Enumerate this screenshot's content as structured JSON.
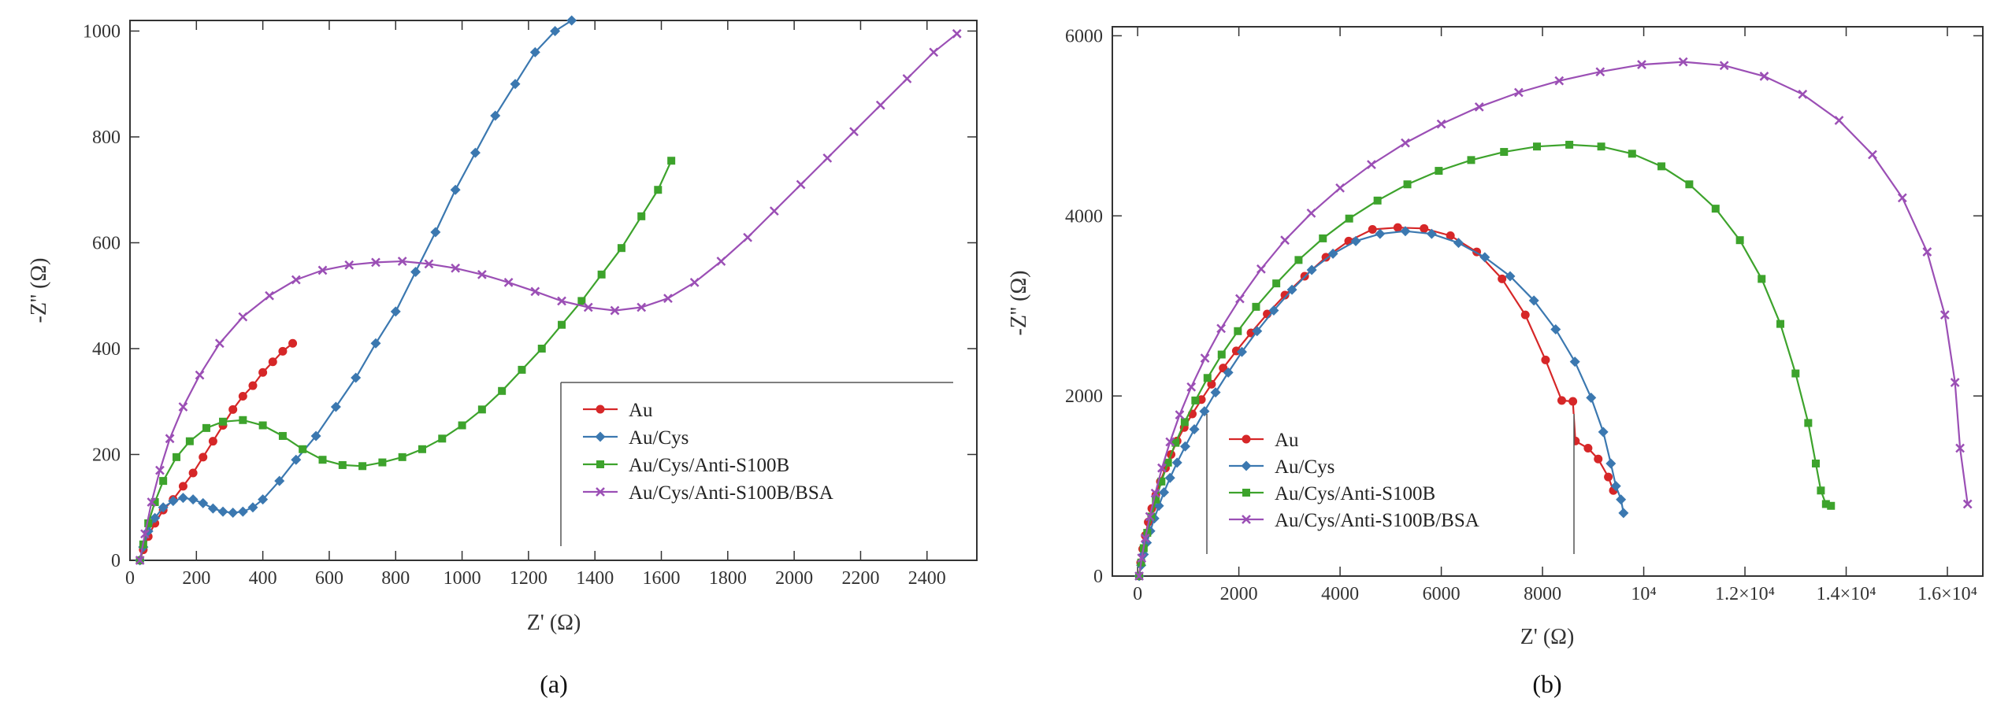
{
  "chart_data": [
    {
      "type": "line",
      "panel_label": "(a)",
      "xlabel": "Z' (Ω)",
      "ylabel": "-Z'' (Ω)",
      "xlim": [
        0,
        2550
      ],
      "ylim": [
        0,
        1020
      ],
      "xticks": [
        0,
        200,
        400,
        600,
        800,
        1000,
        1200,
        1400,
        1600,
        1800,
        2000,
        2200,
        2400
      ],
      "xtick_labels": [
        "0",
        "200",
        "400",
        "600",
        "800",
        "1000",
        "1200",
        "1400",
        "1600",
        "1800",
        "2000",
        "2200",
        "2400"
      ],
      "yticks": [
        0,
        200,
        400,
        600,
        800,
        1000
      ],
      "ytick_labels": [
        "0",
        "200",
        "400",
        "600",
        "800",
        "1000"
      ],
      "legend_position": "bottom-right",
      "series": [
        {
          "name": "Au",
          "color": "#d62728",
          "marker": "circle",
          "x": [
            30,
            40,
            55,
            75,
            100,
            130,
            160,
            190,
            220,
            250,
            280,
            310,
            340,
            370,
            400,
            430,
            460,
            490
          ],
          "y": [
            0,
            20,
            45,
            70,
            95,
            115,
            140,
            165,
            195,
            225,
            255,
            285,
            310,
            330,
            355,
            375,
            395,
            410
          ]
        },
        {
          "name": "Au/Cys",
          "color": "#3b78b0",
          "marker": "diamond",
          "x": [
            30,
            40,
            55,
            75,
            100,
            130,
            160,
            190,
            220,
            250,
            280,
            310,
            340,
            370,
            400,
            450,
            500,
            560,
            620,
            680,
            740,
            800,
            860,
            920,
            980,
            1040,
            1100,
            1160,
            1220,
            1280,
            1330
          ],
          "y": [
            0,
            25,
            55,
            80,
            100,
            112,
            118,
            115,
            108,
            98,
            92,
            90,
            92,
            100,
            115,
            150,
            190,
            235,
            290,
            345,
            410,
            470,
            545,
            620,
            700,
            770,
            840,
            900,
            960,
            1000,
            1020
          ]
        },
        {
          "name": "Au/Cys/Anti-S100B",
          "color": "#3da32c",
          "marker": "square",
          "x": [
            30,
            40,
            55,
            75,
            100,
            140,
            180,
            230,
            280,
            340,
            400,
            460,
            520,
            580,
            640,
            700,
            760,
            820,
            880,
            940,
            1000,
            1060,
            1120,
            1180,
            1240,
            1300,
            1360,
            1420,
            1480,
            1540,
            1590,
            1630
          ],
          "y": [
            0,
            30,
            70,
            110,
            150,
            195,
            225,
            250,
            262,
            265,
            255,
            235,
            210,
            190,
            180,
            178,
            185,
            195,
            210,
            230,
            255,
            285,
            320,
            360,
            400,
            445,
            490,
            540,
            590,
            650,
            700,
            755
          ]
        },
        {
          "name": "Au/Cys/Anti-S100B/BSA",
          "color": "#9b4fb5",
          "marker": "x",
          "x": [
            30,
            45,
            65,
            90,
            120,
            160,
            210,
            270,
            340,
            420,
            500,
            580,
            660,
            740,
            820,
            900,
            980,
            1060,
            1140,
            1220,
            1300,
            1380,
            1460,
            1540,
            1620,
            1700,
            1780,
            1860,
            1940,
            2020,
            2100,
            2180,
            2260,
            2340,
            2420,
            2490
          ],
          "y": [
            0,
            50,
            110,
            170,
            230,
            290,
            350,
            410,
            460,
            500,
            530,
            548,
            558,
            563,
            565,
            560,
            552,
            540,
            525,
            508,
            490,
            478,
            472,
            478,
            495,
            525,
            565,
            610,
            660,
            710,
            760,
            810,
            860,
            910,
            960,
            995
          ]
        }
      ]
    },
    {
      "type": "line",
      "panel_label": "(b)",
      "xlabel": "Z' (Ω)",
      "ylabel": "-Z'' (Ω)",
      "xlim": [
        -500,
        16700
      ],
      "ylim": [
        0,
        6100
      ],
      "xticks": [
        0,
        2000,
        4000,
        6000,
        8000,
        10000,
        12000,
        14000,
        16000
      ],
      "xtick_labels": [
        "0",
        "2000",
        "4000",
        "6000",
        "8000",
        "10⁴",
        "1.2×10⁴",
        "1.4×10⁴",
        "1.6×10⁴"
      ],
      "yticks": [
        0,
        2000,
        4000,
        6000
      ],
      "ytick_labels": [
        "0",
        "2000",
        "4000",
        "6000"
      ],
      "legend_position": "bottom-left",
      "series": [
        {
          "name": "Au",
          "color": "#d62728",
          "marker": "circle",
          "x": [
            30,
            60,
            100,
            150,
            210,
            280,
            360,
            450,
            550,
            660,
            780,
            920,
            1080,
            1260,
            1460,
            1690,
            1950,
            2240,
            2560,
            2910,
            3300,
            3720,
            4170,
            4640,
            5140,
            5660,
            6180,
            6700,
            7200,
            7660,
            8060,
            8380,
            8600,
            8650,
            8900,
            9100,
            9300,
            9400
          ],
          "y": [
            0,
            150,
            300,
            450,
            600,
            750,
            900,
            1050,
            1200,
            1350,
            1500,
            1650,
            1800,
            1960,
            2130,
            2310,
            2500,
            2700,
            2910,
            3120,
            3330,
            3540,
            3720,
            3850,
            3870,
            3860,
            3780,
            3600,
            3300,
            2900,
            2400,
            1950,
            1940,
            1500,
            1420,
            1300,
            1100,
            950
          ]
        },
        {
          "name": "Au/Cys",
          "color": "#3b78b0",
          "marker": "diamond",
          "x": [
            30,
            70,
            120,
            180,
            250,
            330,
            420,
            520,
            640,
            780,
            940,
            1120,
            1320,
            1540,
            1790,
            2060,
            2360,
            2690,
            3050,
            3440,
            3860,
            4310,
            4790,
            5290,
            5810,
            6340,
            6860,
            7360,
            7830,
            8260,
            8640,
            8960,
            9200,
            9350,
            9450,
            9550,
            9600
          ],
          "y": [
            0,
            120,
            240,
            370,
            500,
            640,
            780,
            930,
            1090,
            1260,
            1440,
            1630,
            1830,
            2040,
            2260,
            2490,
            2720,
            2950,
            3180,
            3400,
            3580,
            3720,
            3800,
            3830,
            3800,
            3700,
            3540,
            3330,
            3060,
            2740,
            2380,
            1980,
            1600,
            1250,
            1000,
            850,
            700
          ]
        },
        {
          "name": "Au/Cys/Anti-S100B",
          "color": "#3da32c",
          "marker": "square",
          "x": [
            30,
            70,
            120,
            190,
            270,
            360,
            470,
            600,
            750,
            930,
            1140,
            1380,
            1660,
            1980,
            2340,
            2740,
            3180,
            3660,
            4180,
            4740,
            5330,
            5950,
            6590,
            7240,
            7890,
            8530,
            9160,
            9770,
            10350,
            10900,
            11420,
            11900,
            12330,
            12700,
            13000,
            13250,
            13400,
            13500,
            13600,
            13700
          ],
          "y": [
            0,
            150,
            310,
            480,
            660,
            850,
            1050,
            1260,
            1480,
            1710,
            1950,
            2200,
            2460,
            2720,
            2990,
            3250,
            3510,
            3750,
            3970,
            4170,
            4350,
            4500,
            4620,
            4710,
            4770,
            4790,
            4770,
            4690,
            4550,
            4350,
            4080,
            3730,
            3300,
            2800,
            2250,
            1700,
            1250,
            950,
            800,
            780
          ]
        },
        {
          "name": "Au/Cys/Anti-S100B/BSA",
          "color": "#9b4fb5",
          "marker": "x",
          "x": [
            30,
            80,
            150,
            240,
            350,
            480,
            640,
            830,
            1060,
            1330,
            1650,
            2020,
            2440,
            2910,
            3430,
            4000,
            4620,
            5290,
            6000,
            6750,
            7530,
            8330,
            9140,
            9960,
            10780,
            11590,
            12380,
            13140,
            13860,
            14520,
            15110,
            15600,
            15950,
            16150,
            16250,
            16400
          ],
          "y": [
            0,
            200,
            420,
            660,
            920,
            1200,
            1490,
            1790,
            2100,
            2420,
            2750,
            3080,
            3410,
            3730,
            4030,
            4310,
            4570,
            4810,
            5020,
            5210,
            5370,
            5500,
            5600,
            5680,
            5710,
            5670,
            5550,
            5350,
            5060,
            4680,
            4200,
            3600,
            2900,
            2150,
            1420,
            800
          ]
        }
      ]
    }
  ]
}
